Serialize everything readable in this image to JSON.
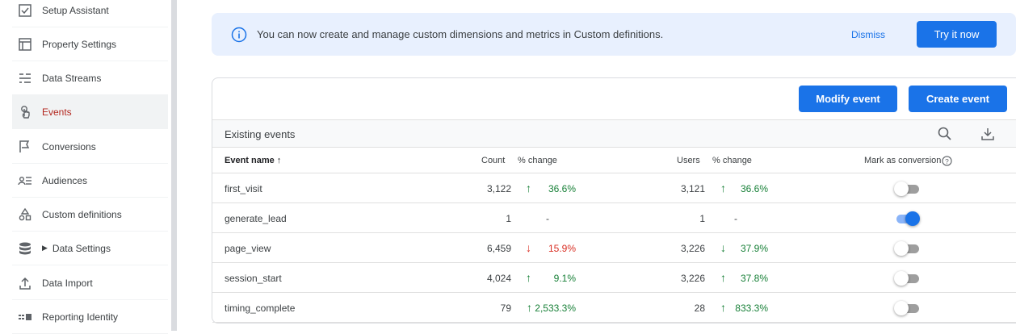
{
  "sidebar": {
    "items": [
      {
        "label": "Setup Assistant",
        "icon": "checkbox-icon"
      },
      {
        "label": "Property Settings",
        "icon": "window-icon"
      },
      {
        "label": "Data Streams",
        "icon": "streams-icon"
      },
      {
        "label": "Events",
        "icon": "touch-icon",
        "active": true
      },
      {
        "label": "Conversions",
        "icon": "flag-icon"
      },
      {
        "label": "Audiences",
        "icon": "audience-icon"
      },
      {
        "label": "Custom definitions",
        "icon": "shapes-icon"
      },
      {
        "label": "Data Settings",
        "icon": "database-icon",
        "caret": "▶"
      },
      {
        "label": "Data Import",
        "icon": "upload-icon"
      },
      {
        "label": "Reporting Identity",
        "icon": "identity-icon"
      }
    ]
  },
  "banner": {
    "text": "You can now create and manage custom dimensions and metrics in Custom definitions.",
    "dismiss_label": "Dismiss",
    "try_label": "Try it now",
    "icon": "info-icon"
  },
  "toolbar": {
    "modify_label": "Modify event",
    "create_label": "Create event"
  },
  "table": {
    "title": "Existing events",
    "headers": {
      "event_name": "Event name ↑",
      "count": "Count",
      "count_change": "% change",
      "users": "Users",
      "users_change": "% change",
      "conversion": "Mark as conversion"
    },
    "rows": [
      {
        "name": "first_visit",
        "count": "3,122",
        "count_dir": "up",
        "count_change": "36.6%",
        "users": "3,121",
        "users_dir": "up",
        "users_change": "36.6%",
        "conversion": false
      },
      {
        "name": "generate_lead",
        "count": "1",
        "count_dir": "",
        "count_change": "-",
        "users": "1",
        "users_dir": "",
        "users_change": "-",
        "conversion": true
      },
      {
        "name": "page_view",
        "count": "6,459",
        "count_dir": "down",
        "count_change": "15.9%",
        "users": "3,226",
        "users_dir": "down-green",
        "users_change": "37.9%",
        "conversion": false
      },
      {
        "name": "session_start",
        "count": "4,024",
        "count_dir": "up",
        "count_change": "9.1%",
        "users": "3,226",
        "users_dir": "up",
        "users_change": "37.8%",
        "conversion": false
      },
      {
        "name": "timing_complete",
        "count": "79",
        "count_dir": "up-tight",
        "count_change": "2,533.3%",
        "users": "28",
        "users_dir": "up",
        "users_change": "833.3%",
        "conversion": false
      }
    ]
  },
  "colors": {
    "accent": "#1a73e8",
    "up": "#188038",
    "down": "#d93025",
    "active_nav": "#b3261e"
  }
}
